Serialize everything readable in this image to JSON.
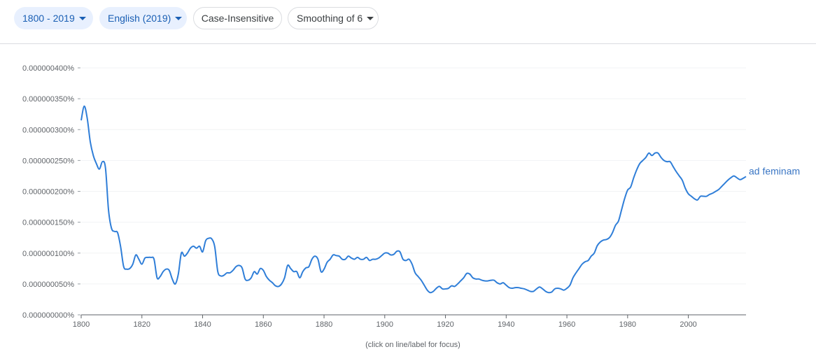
{
  "toolbar": {
    "year_range": "1800 - 2019",
    "corpus": "English (2019)",
    "case": "Case-Insensitive",
    "smoothing": "Smoothing of 6"
  },
  "colors": {
    "series": "#2f7ed8",
    "chip_bg": "#e8f0fe",
    "chip_text": "#1a5fb4"
  },
  "chart_data": {
    "type": "line",
    "xlabel": "",
    "ylabel": "",
    "xlim": [
      1800,
      2019
    ],
    "ylim": [
      0,
      4e-07
    ],
    "x_ticks": [
      1800,
      1820,
      1840,
      1860,
      1880,
      1900,
      1920,
      1940,
      1960,
      1980,
      2000
    ],
    "x_tick_labels": [
      "1800",
      "1820",
      "1840",
      "1860",
      "1880",
      "1900",
      "1920",
      "1940",
      "1960",
      "1980",
      "2000"
    ],
    "y_ticks": [
      0,
      5e-08,
      1e-07,
      1.5e-07,
      2e-07,
      2.5e-07,
      3e-07,
      3.5e-07,
      4e-07
    ],
    "y_tick_labels": [
      "0.000000000%",
      "0.000000050%",
      "0.000000100%",
      "0.000000150%",
      "0.000000200%",
      "0.000000250%",
      "0.000000300%",
      "0.000000350%",
      "0.000000400%"
    ],
    "grid": true,
    "footnote": "(click on line/label for focus)",
    "series": [
      {
        "name": "ad feminam",
        "points": [
          [
            1800,
            3.15e-07
          ],
          [
            1801,
            3.38e-07
          ],
          [
            1802,
            3.18e-07
          ],
          [
            1803,
            2.8e-07
          ],
          [
            1804,
            2.58e-07
          ],
          [
            1805,
            2.45e-07
          ],
          [
            1806,
            2.36e-07
          ],
          [
            1807,
            2.48e-07
          ],
          [
            1808,
            2.38e-07
          ],
          [
            1809,
            1.7e-07
          ],
          [
            1810,
            1.4e-07
          ],
          [
            1811,
            1.35e-07
          ],
          [
            1812,
            1.33e-07
          ],
          [
            1813,
            1.1e-07
          ],
          [
            1814,
            7.8e-08
          ],
          [
            1815,
            7.4e-08
          ],
          [
            1816,
            7.5e-08
          ],
          [
            1817,
            8.2e-08
          ],
          [
            1818,
            9.7e-08
          ],
          [
            1819,
            9e-08
          ],
          [
            1820,
            8.2e-08
          ],
          [
            1821,
            9.2e-08
          ],
          [
            1822,
            9.3e-08
          ],
          [
            1823,
            9.3e-08
          ],
          [
            1824,
            9e-08
          ],
          [
            1825,
            6e-08
          ],
          [
            1826,
            6.2e-08
          ],
          [
            1827,
            7e-08
          ],
          [
            1828,
            7.4e-08
          ],
          [
            1829,
            7.2e-08
          ],
          [
            1830,
            5.8e-08
          ],
          [
            1831,
            5e-08
          ],
          [
            1832,
            6.6e-08
          ],
          [
            1833,
            1e-07
          ],
          [
            1834,
            9.5e-08
          ],
          [
            1835,
            1e-07
          ],
          [
            1836,
            1.08e-07
          ],
          [
            1837,
            1.11e-07
          ],
          [
            1838,
            1.08e-07
          ],
          [
            1839,
            1.11e-07
          ],
          [
            1840,
            1.02e-07
          ],
          [
            1841,
            1.2e-07
          ],
          [
            1842,
            1.24e-07
          ],
          [
            1843,
            1.23e-07
          ],
          [
            1844,
            1.1e-07
          ],
          [
            1845,
            7e-08
          ],
          [
            1846,
            6.3e-08
          ],
          [
            1847,
            6.4e-08
          ],
          [
            1848,
            6.8e-08
          ],
          [
            1849,
            6.8e-08
          ],
          [
            1850,
            7.2e-08
          ],
          [
            1851,
            7.8e-08
          ],
          [
            1852,
            8e-08
          ],
          [
            1853,
            7.6e-08
          ],
          [
            1854,
            5.8e-08
          ],
          [
            1855,
            5.6e-08
          ],
          [
            1856,
            6e-08
          ],
          [
            1857,
            7e-08
          ],
          [
            1858,
            6.6e-08
          ],
          [
            1859,
            7.5e-08
          ],
          [
            1860,
            7.2e-08
          ],
          [
            1861,
            6.2e-08
          ],
          [
            1862,
            5.6e-08
          ],
          [
            1863,
            5.2e-08
          ],
          [
            1864,
            4.7e-08
          ],
          [
            1865,
            4.6e-08
          ],
          [
            1866,
            5e-08
          ],
          [
            1867,
            6e-08
          ],
          [
            1868,
            8e-08
          ],
          [
            1869,
            7.5e-08
          ],
          [
            1870,
            7e-08
          ],
          [
            1871,
            7e-08
          ],
          [
            1872,
            6e-08
          ],
          [
            1873,
            7e-08
          ],
          [
            1874,
            7.6e-08
          ],
          [
            1875,
            7.8e-08
          ],
          [
            1876,
            9e-08
          ],
          [
            1877,
            9.5e-08
          ],
          [
            1878,
            9e-08
          ],
          [
            1879,
            7e-08
          ],
          [
            1880,
            7.4e-08
          ],
          [
            1881,
            8.5e-08
          ],
          [
            1882,
            9e-08
          ],
          [
            1883,
            9.7e-08
          ],
          [
            1884,
            9.6e-08
          ],
          [
            1885,
            9.5e-08
          ],
          [
            1886,
            9e-08
          ],
          [
            1887,
            9e-08
          ],
          [
            1888,
            9.5e-08
          ],
          [
            1889,
            9.2e-08
          ],
          [
            1890,
            9e-08
          ],
          [
            1891,
            9.3e-08
          ],
          [
            1892,
            9e-08
          ],
          [
            1893,
            9e-08
          ],
          [
            1894,
            9.3e-08
          ],
          [
            1895,
            8.8e-08
          ],
          [
            1896,
            9e-08
          ],
          [
            1897,
            9e-08
          ],
          [
            1898,
            9.2e-08
          ],
          [
            1899,
            9.6e-08
          ],
          [
            1900,
            1e-07
          ],
          [
            1901,
            1e-07
          ],
          [
            1902,
            9.7e-08
          ],
          [
            1903,
            9.8e-08
          ],
          [
            1904,
            1.03e-07
          ],
          [
            1905,
            1.02e-07
          ],
          [
            1906,
            9e-08
          ],
          [
            1907,
            8.8e-08
          ],
          [
            1908,
            9e-08
          ],
          [
            1909,
            8.2e-08
          ],
          [
            1910,
            6.8e-08
          ],
          [
            1911,
            6.2e-08
          ],
          [
            1912,
            5.6e-08
          ],
          [
            1913,
            4.8e-08
          ],
          [
            1914,
            4e-08
          ],
          [
            1915,
            3.6e-08
          ],
          [
            1916,
            3.8e-08
          ],
          [
            1917,
            4.3e-08
          ],
          [
            1918,
            4.6e-08
          ],
          [
            1919,
            4.2e-08
          ],
          [
            1920,
            4.2e-08
          ],
          [
            1921,
            4.3e-08
          ],
          [
            1922,
            4.7e-08
          ],
          [
            1923,
            4.6e-08
          ],
          [
            1924,
            5e-08
          ],
          [
            1925,
            5.5e-08
          ],
          [
            1926,
            6e-08
          ],
          [
            1927,
            6.7e-08
          ],
          [
            1928,
            6.6e-08
          ],
          [
            1929,
            6e-08
          ],
          [
            1930,
            5.8e-08
          ],
          [
            1931,
            5.8e-08
          ],
          [
            1932,
            5.6e-08
          ],
          [
            1933,
            5.5e-08
          ],
          [
            1934,
            5.5e-08
          ],
          [
            1935,
            5.6e-08
          ],
          [
            1936,
            5.6e-08
          ],
          [
            1937,
            5.2e-08
          ],
          [
            1938,
            5e-08
          ],
          [
            1939,
            5.2e-08
          ],
          [
            1940,
            4.8e-08
          ],
          [
            1941,
            4.4e-08
          ],
          [
            1942,
            4.3e-08
          ],
          [
            1943,
            4.4e-08
          ],
          [
            1944,
            4.4e-08
          ],
          [
            1945,
            4.3e-08
          ],
          [
            1946,
            4.2e-08
          ],
          [
            1947,
            4e-08
          ],
          [
            1948,
            3.8e-08
          ],
          [
            1949,
            3.8e-08
          ],
          [
            1950,
            4.2e-08
          ],
          [
            1951,
            4.5e-08
          ],
          [
            1952,
            4.2e-08
          ],
          [
            1953,
            3.8e-08
          ],
          [
            1954,
            3.6e-08
          ],
          [
            1955,
            3.7e-08
          ],
          [
            1956,
            4.2e-08
          ],
          [
            1957,
            4.3e-08
          ],
          [
            1958,
            4.2e-08
          ],
          [
            1959,
            4e-08
          ],
          [
            1960,
            4.3e-08
          ],
          [
            1961,
            4.8e-08
          ],
          [
            1962,
            6e-08
          ],
          [
            1963,
            6.8e-08
          ],
          [
            1964,
            7.5e-08
          ],
          [
            1965,
            8.2e-08
          ],
          [
            1966,
            8.6e-08
          ],
          [
            1967,
            8.8e-08
          ],
          [
            1968,
            9.5e-08
          ],
          [
            1969,
            1e-07
          ],
          [
            1970,
            1.12e-07
          ],
          [
            1971,
            1.18e-07
          ],
          [
            1972,
            1.21e-07
          ],
          [
            1973,
            1.22e-07
          ],
          [
            1974,
            1.25e-07
          ],
          [
            1975,
            1.33e-07
          ],
          [
            1976,
            1.45e-07
          ],
          [
            1977,
            1.52e-07
          ],
          [
            1978,
            1.7e-07
          ],
          [
            1979,
            1.88e-07
          ],
          [
            1980,
            2.02e-07
          ],
          [
            1981,
            2.07e-07
          ],
          [
            1982,
            2.22e-07
          ],
          [
            1983,
            2.35e-07
          ],
          [
            1984,
            2.45e-07
          ],
          [
            1985,
            2.5e-07
          ],
          [
            1986,
            2.55e-07
          ],
          [
            1987,
            2.62e-07
          ],
          [
            1988,
            2.58e-07
          ],
          [
            1989,
            2.62e-07
          ],
          [
            1990,
            2.62e-07
          ],
          [
            1991,
            2.55e-07
          ],
          [
            1992,
            2.5e-07
          ],
          [
            1993,
            2.48e-07
          ],
          [
            1994,
            2.48e-07
          ],
          [
            1995,
            2.4e-07
          ],
          [
            1996,
            2.32e-07
          ],
          [
            1997,
            2.25e-07
          ],
          [
            1998,
            2.18e-07
          ],
          [
            1999,
            2.05e-07
          ],
          [
            2000,
            1.96e-07
          ],
          [
            2001,
            1.92e-07
          ],
          [
            2002,
            1.88e-07
          ],
          [
            2003,
            1.86e-07
          ],
          [
            2004,
            1.92e-07
          ],
          [
            2005,
            1.92e-07
          ],
          [
            2006,
            1.92e-07
          ],
          [
            2007,
            1.95e-07
          ],
          [
            2008,
            1.97e-07
          ],
          [
            2009,
            2e-07
          ],
          [
            2010,
            2.03e-07
          ],
          [
            2011,
            2.08e-07
          ],
          [
            2012,
            2.13e-07
          ],
          [
            2013,
            2.18e-07
          ],
          [
            2014,
            2.22e-07
          ],
          [
            2015,
            2.25e-07
          ],
          [
            2016,
            2.22e-07
          ],
          [
            2017,
            2.19e-07
          ],
          [
            2018,
            2.21e-07
          ],
          [
            2019,
            2.24e-07
          ]
        ]
      }
    ]
  }
}
